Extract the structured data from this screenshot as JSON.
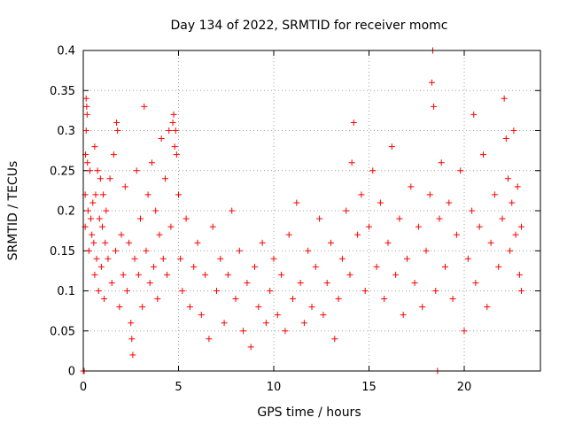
{
  "chart_data": {
    "type": "scatter",
    "title": "Day 134 of 2022, SRMTID for receiver momc",
    "xlabel": "GPS time / hours",
    "ylabel": "SRMTID / TECUs",
    "xlim": [
      0,
      24
    ],
    "ylim": [
      0,
      0.4
    ],
    "xticks": [
      0,
      5,
      10,
      15,
      20
    ],
    "xtick_labels": [
      "0",
      "5",
      "10",
      "15",
      "20"
    ],
    "yticks": [
      0,
      0.05,
      0.1,
      0.15,
      0.2,
      0.25,
      0.3,
      0.35,
      0.4
    ],
    "ytick_labels": [
      "0",
      "0.05",
      "0.1",
      "0.15",
      "0.2",
      "0.25",
      "0.3",
      "0.35",
      "0.4"
    ],
    "grid": true,
    "marker": "plus",
    "color": "#ff0000",
    "points": [
      [
        0.0,
        0.0
      ],
      [
        0.05,
        0.0
      ],
      [
        0.1,
        0.18
      ],
      [
        0.1,
        0.22
      ],
      [
        0.12,
        0.27
      ],
      [
        0.15,
        0.3
      ],
      [
        0.15,
        0.34
      ],
      [
        0.18,
        0.33
      ],
      [
        0.2,
        0.32
      ],
      [
        0.22,
        0.26
      ],
      [
        0.25,
        0.2
      ],
      [
        0.3,
        0.15
      ],
      [
        0.35,
        0.25
      ],
      [
        0.4,
        0.19
      ],
      [
        0.45,
        0.17
      ],
      [
        0.5,
        0.21
      ],
      [
        0.55,
        0.16
      ],
      [
        0.6,
        0.28
      ],
      [
        0.6,
        0.12
      ],
      [
        0.65,
        0.22
      ],
      [
        0.7,
        0.14
      ],
      [
        0.75,
        0.25
      ],
      [
        0.8,
        0.1
      ],
      [
        0.85,
        0.19
      ],
      [
        0.9,
        0.24
      ],
      [
        0.95,
        0.13
      ],
      [
        1.0,
        0.18
      ],
      [
        1.05,
        0.22
      ],
      [
        1.1,
        0.09
      ],
      [
        1.15,
        0.16
      ],
      [
        1.2,
        0.2
      ],
      [
        1.3,
        0.14
      ],
      [
        1.4,
        0.24
      ],
      [
        1.5,
        0.11
      ],
      [
        1.6,
        0.27
      ],
      [
        1.7,
        0.15
      ],
      [
        1.75,
        0.31
      ],
      [
        1.8,
        0.3
      ],
      [
        1.9,
        0.08
      ],
      [
        2.0,
        0.17
      ],
      [
        2.1,
        0.12
      ],
      [
        2.2,
        0.23
      ],
      [
        2.3,
        0.1
      ],
      [
        2.4,
        0.16
      ],
      [
        2.5,
        0.06
      ],
      [
        2.55,
        0.04
      ],
      [
        2.6,
        0.02
      ],
      [
        2.7,
        0.14
      ],
      [
        2.8,
        0.25
      ],
      [
        2.9,
        0.12
      ],
      [
        3.0,
        0.19
      ],
      [
        3.1,
        0.08
      ],
      [
        3.2,
        0.33
      ],
      [
        3.3,
        0.15
      ],
      [
        3.4,
        0.22
      ],
      [
        3.5,
        0.11
      ],
      [
        3.6,
        0.26
      ],
      [
        3.7,
        0.13
      ],
      [
        3.8,
        0.2
      ],
      [
        3.9,
        0.09
      ],
      [
        4.0,
        0.17
      ],
      [
        4.1,
        0.29
      ],
      [
        4.2,
        0.14
      ],
      [
        4.3,
        0.24
      ],
      [
        4.4,
        0.12
      ],
      [
        4.5,
        0.3
      ],
      [
        4.6,
        0.18
      ],
      [
        4.7,
        0.31
      ],
      [
        4.75,
        0.32
      ],
      [
        4.8,
        0.28
      ],
      [
        4.85,
        0.3
      ],
      [
        4.9,
        0.27
      ],
      [
        5.0,
        0.22
      ],
      [
        5.1,
        0.14
      ],
      [
        5.2,
        0.1
      ],
      [
        5.4,
        0.19
      ],
      [
        5.6,
        0.08
      ],
      [
        5.8,
        0.13
      ],
      [
        6.0,
        0.16
      ],
      [
        6.2,
        0.07
      ],
      [
        6.4,
        0.12
      ],
      [
        6.6,
        0.04
      ],
      [
        6.8,
        0.18
      ],
      [
        7.0,
        0.1
      ],
      [
        7.2,
        0.14
      ],
      [
        7.4,
        0.06
      ],
      [
        7.6,
        0.12
      ],
      [
        7.8,
        0.2
      ],
      [
        8.0,
        0.09
      ],
      [
        8.2,
        0.15
      ],
      [
        8.4,
        0.05
      ],
      [
        8.6,
        0.11
      ],
      [
        8.8,
        0.03
      ],
      [
        9.0,
        0.13
      ],
      [
        9.2,
        0.08
      ],
      [
        9.4,
        0.16
      ],
      [
        9.6,
        0.06
      ],
      [
        9.8,
        0.1
      ],
      [
        10.0,
        0.14
      ],
      [
        10.2,
        0.07
      ],
      [
        10.4,
        0.12
      ],
      [
        10.6,
        0.05
      ],
      [
        10.8,
        0.17
      ],
      [
        11.0,
        0.09
      ],
      [
        11.2,
        0.21
      ],
      [
        11.4,
        0.11
      ],
      [
        11.6,
        0.06
      ],
      [
        11.8,
        0.15
      ],
      [
        12.0,
        0.08
      ],
      [
        12.2,
        0.13
      ],
      [
        12.4,
        0.19
      ],
      [
        12.6,
        0.07
      ],
      [
        12.8,
        0.11
      ],
      [
        13.0,
        0.16
      ],
      [
        13.2,
        0.04
      ],
      [
        13.4,
        0.09
      ],
      [
        13.6,
        0.14
      ],
      [
        13.8,
        0.2
      ],
      [
        14.0,
        0.12
      ],
      [
        14.1,
        0.26
      ],
      [
        14.2,
        0.31
      ],
      [
        14.4,
        0.17
      ],
      [
        14.6,
        0.22
      ],
      [
        14.8,
        0.1
      ],
      [
        15.0,
        0.18
      ],
      [
        15.2,
        0.25
      ],
      [
        15.4,
        0.13
      ],
      [
        15.6,
        0.21
      ],
      [
        15.8,
        0.09
      ],
      [
        16.0,
        0.16
      ],
      [
        16.2,
        0.28
      ],
      [
        16.4,
        0.12
      ],
      [
        16.6,
        0.19
      ],
      [
        16.8,
        0.07
      ],
      [
        17.0,
        0.14
      ],
      [
        17.2,
        0.23
      ],
      [
        17.4,
        0.11
      ],
      [
        17.6,
        0.18
      ],
      [
        17.8,
        0.08
      ],
      [
        18.0,
        0.15
      ],
      [
        18.2,
        0.22
      ],
      [
        18.3,
        0.36
      ],
      [
        18.35,
        0.4
      ],
      [
        18.4,
        0.33
      ],
      [
        18.5,
        0.1
      ],
      [
        18.6,
        0.0
      ],
      [
        18.7,
        0.19
      ],
      [
        18.8,
        0.26
      ],
      [
        19.0,
        0.13
      ],
      [
        19.2,
        0.21
      ],
      [
        19.4,
        0.09
      ],
      [
        19.6,
        0.17
      ],
      [
        19.8,
        0.25
      ],
      [
        20.0,
        0.05
      ],
      [
        20.2,
        0.14
      ],
      [
        20.4,
        0.2
      ],
      [
        20.5,
        0.32
      ],
      [
        20.6,
        0.11
      ],
      [
        20.8,
        0.18
      ],
      [
        21.0,
        0.27
      ],
      [
        21.2,
        0.08
      ],
      [
        21.4,
        0.16
      ],
      [
        21.6,
        0.22
      ],
      [
        21.8,
        0.13
      ],
      [
        22.0,
        0.19
      ],
      [
        22.1,
        0.34
      ],
      [
        22.2,
        0.29
      ],
      [
        22.3,
        0.24
      ],
      [
        22.4,
        0.15
      ],
      [
        22.5,
        0.21
      ],
      [
        22.6,
        0.3
      ],
      [
        22.7,
        0.17
      ],
      [
        22.8,
        0.23
      ],
      [
        22.9,
        0.12
      ],
      [
        23.0,
        0.18
      ],
      [
        23.0,
        0.1
      ]
    ]
  }
}
